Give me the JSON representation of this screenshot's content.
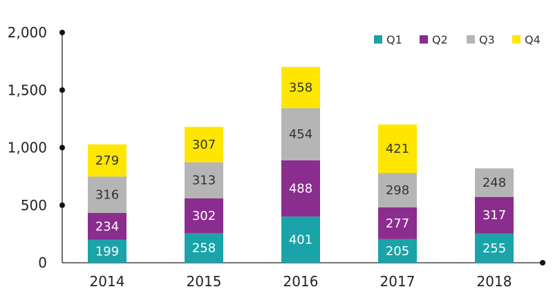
{
  "chart_data": {
    "type": "bar",
    "stacked": true,
    "categories": [
      "2014",
      "2015",
      "2016",
      "2017",
      "2018"
    ],
    "series": [
      {
        "name": "Q1",
        "values": [
          199,
          258,
          401,
          205,
          255
        ]
      },
      {
        "name": "Q2",
        "values": [
          234,
          302,
          488,
          277,
          317
        ]
      },
      {
        "name": "Q3",
        "values": [
          316,
          313,
          454,
          298,
          248
        ]
      },
      {
        "name": "Q4",
        "values": [
          279,
          307,
          358,
          421,
          null
        ]
      }
    ],
    "colors": [
      "#1aa3a8",
      "#8b2d8f",
      "#b5b5b5",
      "#ffe600"
    ],
    "label_colors": [
      "#ffffff",
      "#ffffff",
      "#333333",
      "#333333"
    ],
    "yticks": [
      "0",
      "500",
      "1,000",
      "1,500",
      "2,000"
    ],
    "ytick_values": [
      0,
      500,
      1000,
      1500,
      2000
    ],
    "ylim": [
      0,
      2000
    ],
    "grid": false,
    "legend_position": "top-right",
    "title": "",
    "xlabel": "",
    "ylabel": ""
  }
}
